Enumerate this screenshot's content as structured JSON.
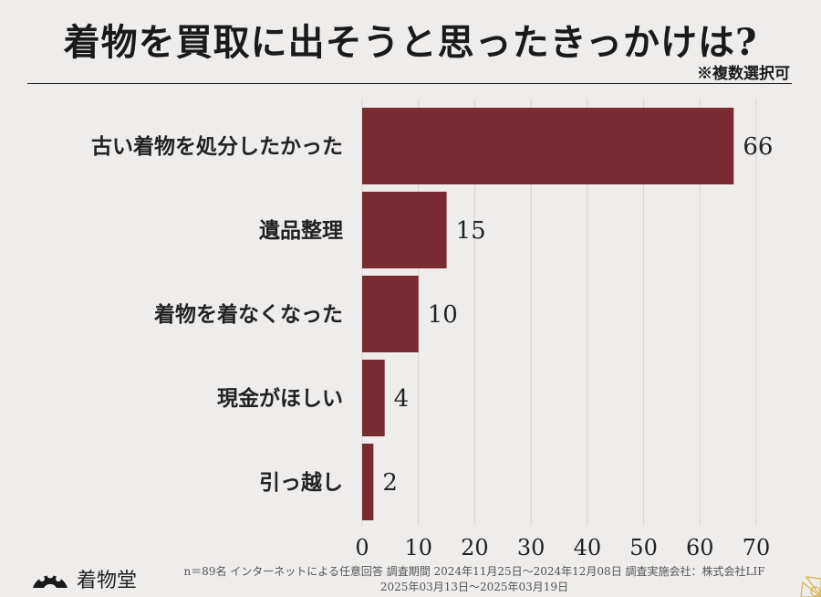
{
  "title": "着物を買取に出そうと思ったきっかけは?",
  "note": "※複数選択可",
  "chart_data": {
    "type": "bar",
    "orientation": "horizontal",
    "categories": [
      "古い着物を処分したかった",
      "遺品整理",
      "着物を着なくなった",
      "現金がほしい",
      "引っ越し"
    ],
    "values": [
      66,
      15,
      10,
      4,
      2
    ],
    "xlim": [
      0,
      70
    ],
    "xticks": [
      0,
      10,
      20,
      30,
      40,
      50,
      60,
      70
    ],
    "bar_color": "#7a2a33",
    "grid": true
  },
  "footer": {
    "line1": "n＝89名 インターネットによる任意回答 調査期間 2024年11月25日〜2024年12月08日 調査実施会社：株式会社LIF",
    "line2": "2025年03月13日〜2025年03月19日"
  },
  "brand": {
    "name": "着物堂",
    "icon": "fan-logo-icon"
  }
}
